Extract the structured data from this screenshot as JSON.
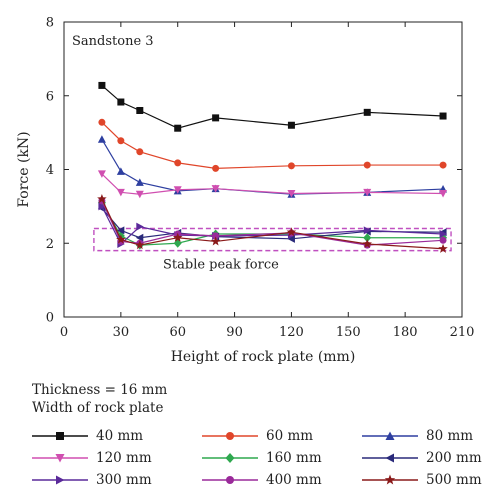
{
  "chart_data": {
    "type": "line",
    "annotation_title": "Sandstone 3",
    "annotation_box": "Stable peak force",
    "xlabel": "Height of rock plate (mm)",
    "ylabel": "Force (kN)",
    "xlim": [
      0,
      210
    ],
    "ylim": [
      0,
      8
    ],
    "xticks": [
      0,
      30,
      60,
      90,
      120,
      150,
      180,
      210
    ],
    "yticks": [
      0,
      2,
      4,
      6,
      8
    ],
    "stable_region": {
      "x": [
        20,
        200
      ],
      "y": [
        1.8,
        2.4
      ]
    },
    "legend": {
      "line1": "Thickness = 16 mm",
      "line2": "Width of rock plate"
    },
    "x": [
      20,
      30,
      40,
      60,
      80,
      120,
      160,
      200
    ],
    "series": [
      {
        "name": "40 mm",
        "color": "#111111",
        "marker": "square",
        "values": [
          6.28,
          5.83,
          5.6,
          5.12,
          5.4,
          5.2,
          5.55,
          5.45
        ]
      },
      {
        "name": "60 mm",
        "color": "#e0462a",
        "marker": "circle",
        "values": [
          5.28,
          4.78,
          4.48,
          4.18,
          4.03,
          4.1,
          4.12,
          4.12
        ]
      },
      {
        "name": "80 mm",
        "color": "#2e3fa0",
        "marker": "triangle-up",
        "values": [
          4.82,
          3.95,
          3.65,
          3.42,
          3.48,
          3.33,
          3.38,
          3.47
        ]
      },
      {
        "name": "120 mm",
        "color": "#d04fb0",
        "marker": "triangle-down",
        "values": [
          3.88,
          3.38,
          3.33,
          3.45,
          3.48,
          3.35,
          3.38,
          3.35
        ]
      },
      {
        "name": "160 mm",
        "color": "#2fa84f",
        "marker": "diamond",
        "values": [
          3.1,
          2.2,
          1.95,
          2.0,
          2.25,
          2.25,
          2.15,
          2.15
        ]
      },
      {
        "name": "200 mm",
        "color": "#2a2a7a",
        "marker": "triangle-left",
        "values": [
          2.95,
          2.35,
          2.15,
          2.28,
          2.18,
          2.12,
          2.32,
          2.3
        ]
      },
      {
        "name": "300 mm",
        "color": "#5a2a9a",
        "marker": "triangle-right",
        "values": [
          3.0,
          1.98,
          2.45,
          2.22,
          2.2,
          2.22,
          2.35,
          2.25
        ]
      },
      {
        "name": "400 mm",
        "color": "#9a2a9a",
        "marker": "circle",
        "values": [
          3.15,
          2.05,
          2.0,
          2.25,
          2.2,
          2.28,
          1.95,
          2.08
        ]
      },
      {
        "name": "500 mm",
        "color": "#8a1a1a",
        "marker": "star",
        "values": [
          3.2,
          2.1,
          1.95,
          2.15,
          2.05,
          2.3,
          1.98,
          1.85
        ]
      }
    ]
  }
}
